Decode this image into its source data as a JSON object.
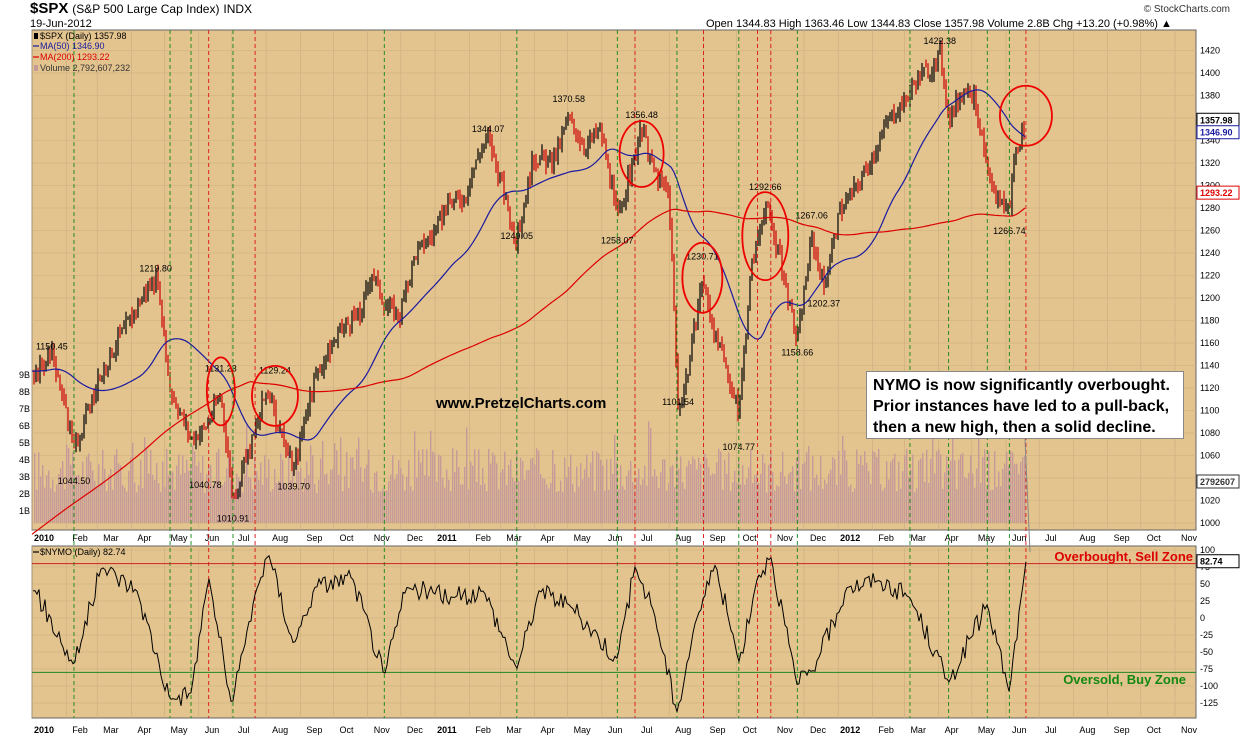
{
  "header": {
    "symbol": "$SPX",
    "name": "(S&P 500 Large Cap Index)",
    "index": "INDX",
    "date": "19-Jun-2012",
    "ohlc_text": "Open 1344.83  High 1363.46  Low 1344.83  Close 1357.98  Volume 2.8B  Chg +13.20 (+0.98%) ▲",
    "credit": "© StockCharts.com"
  },
  "legend": {
    "price": "$SPX (Daily) 1357.98",
    "ma50": "MA(50) 1346.90",
    "ma200": "MA(200) 1293.22",
    "volume": "Volume 2,792,607,232"
  },
  "colors": {
    "panel_bg": "#e3c48f",
    "price_up": "#000000",
    "price_down": "#cc0000",
    "ma50": "#1a1aa0",
    "ma200": "#dd0000",
    "volume_bar": "#c79a9a",
    "annotation_circle": "#ee0000",
    "green_vline": "#118811",
    "red_vline": "#dd1111",
    "overbought_line": "#cc2222",
    "oversold_line": "#228822",
    "nymo_line": "#000000"
  },
  "watermark": "www.PretzelCharts.com",
  "annotation": {
    "lines": [
      "NYMO is now significantly overbought.",
      "Prior instances have led to a pull-back,",
      "then a new high, then a solid decline."
    ]
  },
  "right_tags": {
    "close": "1357.98",
    "ma50": "1346.90",
    "ma200": "1293.22",
    "volume": "2792607"
  },
  "nymo": {
    "legend": "$NYMO (Daily) 82.74",
    "value_tag": "82.74",
    "overbought_label": "Overbought, Sell Zone",
    "oversold_label": "Oversold, Buy Zone"
  },
  "chart_data": [
    {
      "type": "candlestick",
      "title": "$SPX (S&P 500 Large Cap Index) INDX",
      "series_name": "$SPX (Daily)",
      "ylim": [
        995,
        1430
      ],
      "y_ticks": [
        1000,
        1020,
        1040,
        1060,
        1080,
        1100,
        1120,
        1140,
        1160,
        1180,
        1200,
        1220,
        1240,
        1260,
        1280,
        1300,
        1320,
        1340,
        1360,
        1380,
        1400,
        1420
      ],
      "volume_ticks": [
        "1B",
        "2B",
        "3B",
        "4B",
        "5B",
        "6B",
        "7B",
        "8B",
        "9B"
      ],
      "x_ticks": [
        "2010",
        "Feb",
        "Mar",
        "Apr",
        "May",
        "Jun",
        "Jul",
        "Aug",
        "Sep",
        "Oct",
        "Nov",
        "Dec",
        "2011",
        "Feb",
        "Mar",
        "Apr",
        "May",
        "Jun",
        "Jul",
        "Aug",
        "Sep",
        "Oct",
        "Nov",
        "Dec",
        "2012",
        "Feb",
        "Mar",
        "Apr",
        "May",
        "Jun",
        "Jul",
        "Aug",
        "Sep",
        "Oct",
        "Nov"
      ],
      "x": [
        "2010-01-04",
        "2010-01-19",
        "2010-02-08",
        "2010-02-25",
        "2010-03-10",
        "2010-03-24",
        "2010-04-07",
        "2010-04-23",
        "2010-05-06",
        "2010-05-25",
        "2010-06-07",
        "2010-06-21",
        "2010-07-02",
        "2010-07-20",
        "2010-08-02",
        "2010-08-12",
        "2010-08-26",
        "2010-09-10",
        "2010-09-24",
        "2010-10-11",
        "2010-10-25",
        "2010-11-05",
        "2010-11-16",
        "2010-11-30",
        "2010-12-14",
        "2010-12-31",
        "2011-01-14",
        "2011-01-28",
        "2011-02-10",
        "2011-02-18",
        "2011-03-01",
        "2011-03-16",
        "2011-03-31",
        "2011-04-18",
        "2011-05-02",
        "2011-05-16",
        "2011-05-31",
        "2011-06-15",
        "2011-06-29",
        "2011-07-07",
        "2011-07-19",
        "2011-08-01",
        "2011-08-09",
        "2011-08-19",
        "2011-08-31",
        "2011-09-12",
        "2011-09-22",
        "2011-10-03",
        "2011-10-14",
        "2011-10-27",
        "2011-11-08",
        "2011-11-25",
        "2011-12-08",
        "2011-12-19",
        "2012-01-03",
        "2012-01-18",
        "2012-02-01",
        "2012-02-16",
        "2012-03-01",
        "2012-03-15",
        "2012-03-30",
        "2012-04-02",
        "2012-04-10",
        "2012-04-26",
        "2012-05-04",
        "2012-05-18",
        "2012-06-04",
        "2012-06-08",
        "2012-06-19"
      ],
      "close": [
        1135,
        1150,
        1065,
        1110,
        1145,
        1170,
        1195,
        1219,
        1120,
        1075,
        1085,
        1115,
        1022,
        1075,
        1120,
        1085,
        1047,
        1115,
        1150,
        1175,
        1185,
        1225,
        1195,
        1185,
        1240,
        1258,
        1285,
        1290,
        1330,
        1343,
        1305,
        1250,
        1325,
        1320,
        1360,
        1335,
        1350,
        1270,
        1320,
        1350,
        1310,
        1290,
        1100,
        1140,
        1218,
        1165,
        1135,
        1098,
        1225,
        1285,
        1240,
        1160,
        1255,
        1210,
        1278,
        1300,
        1325,
        1360,
        1375,
        1400,
        1405,
        1422,
        1360,
        1390,
        1375,
        1295,
        1278,
        1325,
        1357.98
      ],
      "labels": [
        {
          "value": "1150.45",
          "date": "2010-01-19"
        },
        {
          "value": "1044.50",
          "date": "2010-02-08"
        },
        {
          "value": "1219.80",
          "date": "2010-04-23"
        },
        {
          "value": "1131.23",
          "date": "2010-06-21"
        },
        {
          "value": "1040.78",
          "date": "2010-06-07"
        },
        {
          "value": "1010.91",
          "date": "2010-07-02"
        },
        {
          "value": "1129.24",
          "date": "2010-08-09"
        },
        {
          "value": "1039.70",
          "date": "2010-08-26"
        },
        {
          "value": "1344.07",
          "date": "2011-02-18"
        },
        {
          "value": "1249.05",
          "date": "2011-03-16"
        },
        {
          "value": "1370.58",
          "date": "2011-05-02"
        },
        {
          "value": "1258.07",
          "date": "2011-06-15"
        },
        {
          "value": "1356.48",
          "date": "2011-07-07"
        },
        {
          "value": "1101.54",
          "date": "2011-08-09"
        },
        {
          "value": "1230.71",
          "date": "2011-08-31"
        },
        {
          "value": "1074.77",
          "date": "2011-10-03"
        },
        {
          "value": "1292.66",
          "date": "2011-10-27"
        },
        {
          "value": "1158.66",
          "date": "2011-11-25"
        },
        {
          "value": "1267.06",
          "date": "2011-12-08"
        },
        {
          "value": "1202.37",
          "date": "2011-12-19"
        },
        {
          "value": "1422.38",
          "date": "2012-04-02"
        },
        {
          "value": "1266.74",
          "date": "2012-06-04"
        }
      ]
    },
    {
      "type": "line",
      "series_name": "$NYMO (Daily)",
      "ylim": [
        -140,
        105
      ],
      "y_ticks": [
        -125,
        -100,
        -75,
        -50,
        -25,
        0,
        25,
        50,
        75,
        100
      ],
      "overbought_level": 80,
      "oversold_level": -80,
      "x_ticks": [
        "2010",
        "Feb",
        "Mar",
        "Apr",
        "May",
        "Jun",
        "Jul",
        "Aug",
        "Sep",
        "Oct",
        "Nov",
        "Dec",
        "2011",
        "Feb",
        "Mar",
        "Apr",
        "May",
        "Jun",
        "Jul",
        "Aug",
        "Sep",
        "Oct",
        "Nov",
        "Dec",
        "2012",
        "Feb",
        "Mar",
        "Apr",
        "May",
        "Jun",
        "Jul",
        "Aug",
        "Sep",
        "Oct",
        "Nov"
      ],
      "x": [
        "2010-01-04",
        "2010-02-08",
        "2010-03-05",
        "2010-04-06",
        "2010-05-06",
        "2010-05-25",
        "2010-06-10",
        "2010-07-01",
        "2010-07-22",
        "2010-08-03",
        "2010-08-26",
        "2010-09-14",
        "2010-10-18",
        "2010-11-16",
        "2010-12-06",
        "2011-01-18",
        "2011-02-14",
        "2011-03-16",
        "2011-04-05",
        "2011-05-02",
        "2011-06-15",
        "2011-07-01",
        "2011-07-18",
        "2011-08-08",
        "2011-08-24",
        "2011-09-12",
        "2011-10-03",
        "2011-10-20",
        "2011-11-01",
        "2011-11-25",
        "2011-12-14",
        "2012-01-09",
        "2012-02-07",
        "2012-03-06",
        "2012-04-10",
        "2012-05-15",
        "2012-06-04",
        "2012-06-19"
      ],
      "values": [
        40,
        -70,
        75,
        40,
        -120,
        -110,
        60,
        -130,
        35,
        95,
        -40,
        45,
        60,
        -85,
        45,
        30,
        40,
        -75,
        40,
        20,
        -60,
        75,
        10,
        -140,
        -10,
        80,
        -65,
        60,
        90,
        -100,
        -60,
        45,
        55,
        30,
        -95,
        20,
        -110,
        82.74
      ]
    }
  ]
}
